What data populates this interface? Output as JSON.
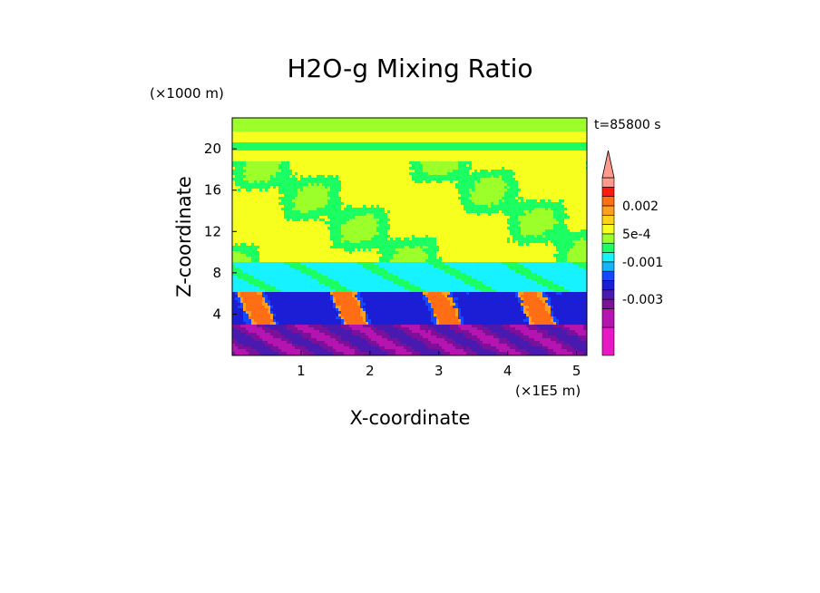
{
  "chart_data": {
    "type": "heatmap",
    "title": "H2O-g Mixing Ratio",
    "xlabel": "X-coordinate",
    "ylabel": "Z-coordinate",
    "x_scale_label": "(×1E5 m)",
    "y_scale_label": "(×1000 m)",
    "time_label": "t=85800 s",
    "xlim": [
      0,
      5.15
    ],
    "ylim": [
      0,
      23
    ],
    "x_ticks": [
      "1",
      "2",
      "3",
      "4",
      "5"
    ],
    "x_tick_values": [
      1,
      2,
      3,
      4,
      5
    ],
    "y_ticks": [
      "4",
      "8",
      "12",
      "16",
      "20"
    ],
    "y_tick_values": [
      4,
      8,
      12,
      16,
      20
    ],
    "colorbar": {
      "labels": [
        "0.002",
        "5e-4",
        "-0.001",
        "-0.003"
      ],
      "label_values": [
        0.002,
        0.0005,
        -0.001,
        -0.003
      ],
      "levels": [
        -0.006,
        -0.0045,
        -0.0035,
        -0.003,
        -0.0025,
        -0.002,
        -0.0015,
        -0.001,
        -0.0005,
        0,
        0.0005,
        0.001,
        0.0015,
        0.002,
        0.0025,
        0.003,
        0.0035
      ],
      "colors": [
        "#e819c4",
        "#b514b0",
        "#7d1099",
        "#4a19b0",
        "#1c1ed6",
        "#1447ff",
        "#14b4ff",
        "#16f2ff",
        "#1cff63",
        "#9cff2a",
        "#f7ff1f",
        "#ffd21c",
        "#ff9f1f",
        "#ff6e15",
        "#ff1a0d",
        "#ff9a8c"
      ],
      "extend_max": true
    },
    "bands": [
      {
        "z_range": [
          0,
          3
        ],
        "description": "purple / magenta, most negative anomaly"
      },
      {
        "z_range": [
          3,
          6
        ],
        "description": "blue, with orange-red moist plumes"
      },
      {
        "z_range": [
          6,
          9
        ],
        "description": "cyan"
      },
      {
        "z_range": [
          9,
          19
        ],
        "description": "yellow and green"
      },
      {
        "z_range": [
          19,
          23
        ],
        "description": "alternating green and yellow layers"
      }
    ],
    "grid": false,
    "legend": "right (colorbar)"
  }
}
